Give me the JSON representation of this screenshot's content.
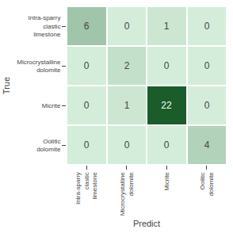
{
  "chart_data": {
    "type": "heatmap",
    "x": [
      "Intra-sparry clastic limestone",
      "Microcrystalline dolomite",
      "Micrite",
      "Oolitic dolomite"
    ],
    "y": [
      "Intra-sparry clastic limestone",
      "Microcrystalline dolomite",
      "Micrite",
      "Oolitic dolomite"
    ],
    "values": [
      [
        6,
        0,
        1,
        0
      ],
      [
        0,
        2,
        0,
        0
      ],
      [
        0,
        1,
        22,
        0
      ],
      [
        0,
        0,
        0,
        4
      ]
    ],
    "xlabel": "Predict",
    "ylabel": "True",
    "colors": [
      "#d4edda",
      "#1a5c2a"
    ],
    "data_labels": true,
    "grid": false
  }
}
